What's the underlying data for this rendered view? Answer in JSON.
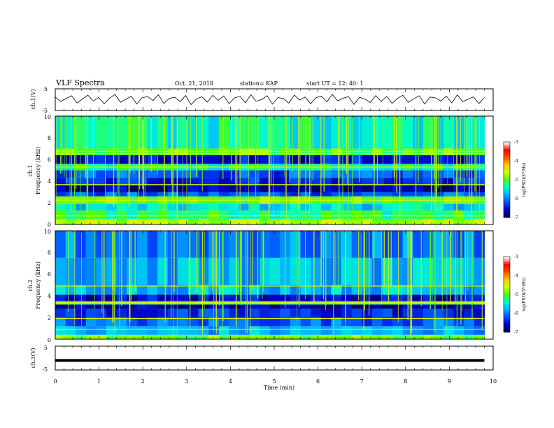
{
  "header": {
    "title": "VLF Spectra",
    "date": "Oct. 21, 2018",
    "station": "station= KAP",
    "start": "start  UT =   12: 40: 1"
  },
  "chart_data": [
    {
      "type": "line",
      "panel": "channel1-waveform",
      "ylabel": "ch.1(V)",
      "ylim": [
        -5,
        5
      ],
      "yticks": [
        "5",
        "-5"
      ],
      "xlim": [
        0,
        10
      ],
      "x_unit": "min",
      "values": [
        1.2,
        -0.8,
        0.5,
        1.8,
        -1.5,
        0.3,
        2.1,
        -0.6,
        1.0,
        -1.9,
        0.7,
        2.4,
        -1.2,
        0.2,
        1.6,
        -2.0,
        0.9,
        1.4,
        -0.4,
        2.2,
        -1.7,
        0.6,
        1.1,
        -0.9,
        1.9,
        -2.3,
        0.4,
        1.3,
        -1.1,
        2.0,
        -0.3,
        1.7,
        -1.8,
        0.8,
        1.5,
        -1.4,
        2.3,
        -0.7,
        0.1,
        1.8,
        -2.1,
        1.0,
        0.5,
        -1.6,
        2.1,
        -0.2,
        1.2,
        -1.9,
        0.9,
        1.6,
        -1.0,
        2.4,
        -0.5,
        0.7,
        1.4,
        -2.2,
        1.1,
        0.3,
        -1.3,
        1.9,
        -0.8,
        1.5,
        -1.7,
        0.6,
        2.0,
        -1.2,
        0.4,
        1.8,
        -2.0,
        1.2,
        0.8,
        -0.6,
        1.6,
        -1.5,
        2.2,
        -0.9,
        0.2,
        1.3,
        -1.8,
        1.0
      ]
    },
    {
      "type": "heatmap",
      "panel": "channel1-spectrogram",
      "ylabel_line1": "ch.1",
      "ylabel_line2": "Frequency (kHz)",
      "ylim": [
        0,
        10
      ],
      "yticks": [
        "0",
        "2",
        "4",
        "6",
        "8",
        "10"
      ],
      "xlim": [
        0,
        10
      ],
      "colorbar": {
        "label": "log(PSD)(V²/Hz)",
        "range": [
          -7,
          -3
        ],
        "ticks": [
          "-3",
          "-4",
          "-5",
          "-6",
          "-7"
        ]
      },
      "bands": [
        {
          "from": 0.0,
          "to": 0.5,
          "level": 0.55
        },
        {
          "from": 0.5,
          "to": 1.3,
          "level": 0.45
        },
        {
          "from": 1.3,
          "to": 1.9,
          "level": 0.35
        },
        {
          "from": 1.9,
          "to": 2.6,
          "level": 0.5
        },
        {
          "from": 2.6,
          "to": 3.0,
          "level": 0.2
        },
        {
          "from": 3.0,
          "to": 3.6,
          "level": 0.05
        },
        {
          "from": 3.6,
          "to": 4.3,
          "level": 0.15
        },
        {
          "from": 4.3,
          "to": 5.0,
          "level": 0.2
        },
        {
          "from": 5.0,
          "to": 5.6,
          "level": 0.42
        },
        {
          "from": 5.6,
          "to": 6.4,
          "level": 0.12
        },
        {
          "from": 6.4,
          "to": 7.0,
          "level": 0.5
        },
        {
          "from": 7.0,
          "to": 10.0,
          "level": 0.4
        }
      ],
      "lines_khz": [
        0.25,
        0.8,
        2.2,
        2.35,
        3.7,
        5.3,
        6.55,
        6.75
      ],
      "bursts_per_min": 11
    },
    {
      "type": "heatmap",
      "panel": "channel2-spectrogram",
      "ylabel_line1": "ch.2",
      "ylabel_line2": "Frequency (kHz)",
      "ylim": [
        0,
        10
      ],
      "yticks": [
        "0",
        "2",
        "4",
        "6",
        "8",
        "10"
      ],
      "xlim": [
        0,
        10
      ],
      "colorbar": {
        "label": "log(PSD)(V²/Hz)",
        "range": [
          -7,
          -3
        ],
        "ticks": [
          "-3",
          "-4",
          "-5",
          "-6",
          "-7"
        ]
      },
      "bands": [
        {
          "from": 0.0,
          "to": 0.4,
          "level": 0.5
        },
        {
          "from": 0.4,
          "to": 1.2,
          "level": 0.3
        },
        {
          "from": 1.2,
          "to": 2.0,
          "level": 0.22
        },
        {
          "from": 2.0,
          "to": 2.8,
          "level": 0.15
        },
        {
          "from": 2.8,
          "to": 3.2,
          "level": 0.05
        },
        {
          "from": 3.2,
          "to": 3.5,
          "level": 0.45
        },
        {
          "from": 3.5,
          "to": 4.1,
          "level": 0.1
        },
        {
          "from": 4.1,
          "to": 5.0,
          "level": 0.32
        },
        {
          "from": 5.0,
          "to": 7.5,
          "level": 0.3
        },
        {
          "from": 7.5,
          "to": 10.0,
          "level": 0.25
        }
      ],
      "lines_khz": [
        0.3,
        0.9,
        1.9,
        3.3,
        3.4,
        4.9
      ],
      "bursts_per_min": 10
    },
    {
      "type": "line",
      "panel": "channel3-waveform",
      "ylabel": "ch.3(V)",
      "ylim": [
        -5,
        5
      ],
      "yticks": [
        "5",
        "-5"
      ],
      "xlim": [
        0,
        10
      ],
      "values": [
        -1,
        -1
      ],
      "x": [
        0,
        9.8
      ]
    }
  ],
  "xaxis": {
    "label": "Time (min)",
    "ticks": [
      "0",
      "1",
      "2",
      "3",
      "4",
      "5",
      "6",
      "7",
      "8",
      "9",
      "10"
    ],
    "range": [
      0,
      10
    ],
    "data_end": 9.8
  },
  "colors": {
    "line": "#000000",
    "colormap": [
      "#000060",
      "#0000c8",
      "#0050ff",
      "#00b4ff",
      "#00ffc8",
      "#50ff00",
      "#d2ff00",
      "#ffc800",
      "#ff5000",
      "#ff0000",
      "#ffffff"
    ]
  }
}
